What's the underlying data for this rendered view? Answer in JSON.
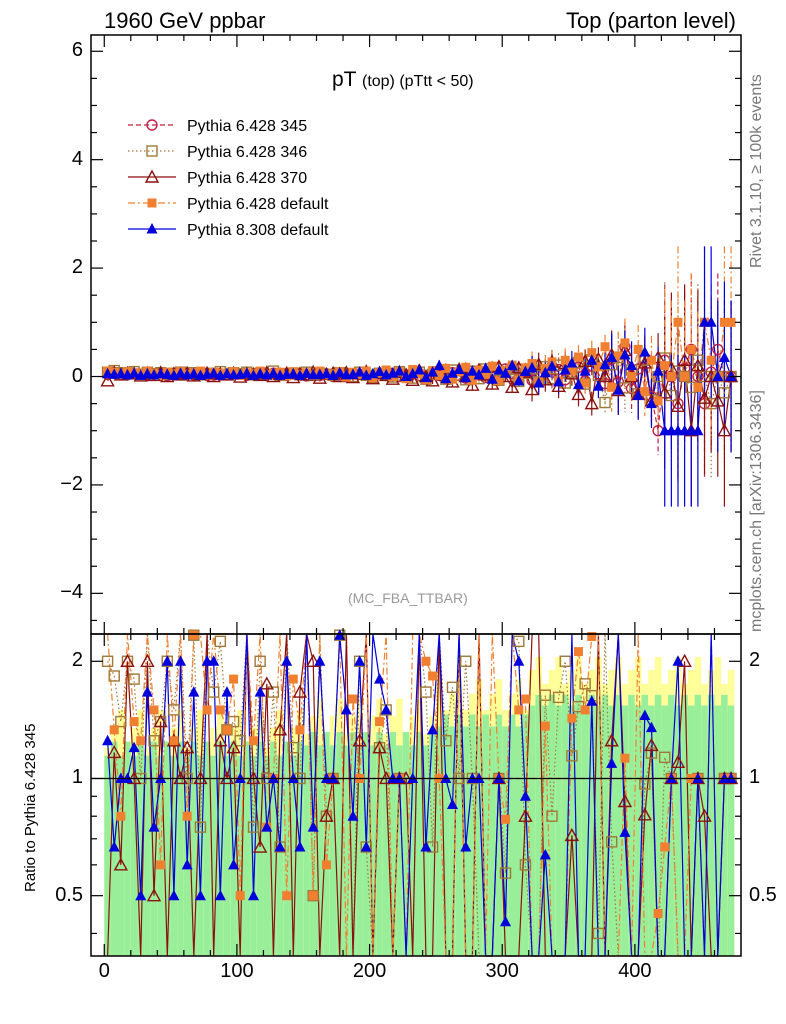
{
  "header": {
    "left": "1960 GeV ppbar",
    "right": "Top (parton level)"
  },
  "side_texts": {
    "rivet": "Rivet 3.1.10, ≥ 100k events",
    "mcplots": "mcplots.cern.ch [arXiv:1306.3436]"
  },
  "analysis_tag": "(MC_FBA_TTBAR)",
  "colors": {
    "p345": "#c02040",
    "p346": "#a07838",
    "p370": "#8b1010",
    "p6def": "#f08030",
    "p8def": "#0000dd",
    "band_inner": "#99ee99",
    "band_outer": "#ffff99"
  },
  "chart_data": [
    {
      "type": "scatter",
      "title_main": "pT",
      "title_sub": "(top) (pTtt < 50)",
      "xlim": [
        -10,
        480
      ],
      "ylim": [
        -4.75,
        6.3
      ],
      "yticks": [
        -4,
        -2,
        0,
        2,
        4,
        6
      ],
      "ytick_labels": [
        "−4",
        "−2",
        "0",
        "2",
        "4",
        "6"
      ],
      "legend_position": "top-left",
      "series": [
        {
          "name": "Pythia 6.428 345",
          "marker": "open-circle",
          "line": "dashed"
        },
        {
          "name": "Pythia 6.428 346",
          "marker": "open-square",
          "line": "dotted"
        },
        {
          "name": "Pythia 6.428 370",
          "marker": "open-triangle",
          "line": "solid"
        },
        {
          "name": "Pythia 6.428 default",
          "marker": "filled-square",
          "line": "dashdot"
        },
        {
          "name": "Pythia 8.308 default",
          "marker": "filled-triangle",
          "line": "solid"
        }
      ],
      "x": [
        2.5,
        7.5,
        12.5,
        17.5,
        22.5,
        27.5,
        32.5,
        37.5,
        42.5,
        47.5,
        52.5,
        57.5,
        62.5,
        67.5,
        72.5,
        77.5,
        82.5,
        87.5,
        92.5,
        97.5,
        102.5,
        107.5,
        112.5,
        117.5,
        122.5,
        127.5,
        132.5,
        137.5,
        142.5,
        147.5,
        152.5,
        157.5,
        162.5,
        167.5,
        172.5,
        177.5,
        182.5,
        187.5,
        192.5,
        197.5,
        202.5,
        207.5,
        212.5,
        217.5,
        222.5,
        227.5,
        232.5,
        237.5,
        242.5,
        247.5,
        252.5,
        257.5,
        262.5,
        267.5,
        272.5,
        277.5,
        282.5,
        287.5,
        292.5,
        297.5,
        302.5,
        307.5,
        312.5,
        317.5,
        322.5,
        327.5,
        332.5,
        337.5,
        342.5,
        347.5,
        352.5,
        357.5,
        362.5,
        367.5,
        372.5,
        377.5,
        382.5,
        387.5,
        392.5,
        397.5,
        402.5,
        407.5,
        412.5,
        417.5,
        422.5,
        427.5,
        432.5,
        437.5,
        442.5,
        447.5,
        452.5,
        457.5,
        462.5,
        467.5,
        472.5
      ],
      "y_p345": [
        0.04,
        0.06,
        0.05,
        0.03,
        0.05,
        0.04,
        0.03,
        0.04,
        0.05,
        0.02,
        0.04,
        0.03,
        0.05,
        0.03,
        0.04,
        0.02,
        0.03,
        0.04,
        0.03,
        0.05,
        0.04,
        0.02,
        0.04,
        0.03,
        0.04,
        0.06,
        0.03,
        0.02,
        0.05,
        0.03,
        0.01,
        0.04,
        0.02,
        0.05,
        0.0,
        0.03,
        0.02,
        0.05,
        0.04,
        0.03,
        0.01,
        0.05,
        0.02,
        0.06,
        0.0,
        0.03,
        0.05,
        0.02,
        -0.03,
        0.06,
        0.02,
        -0.04,
        0.07,
        0.02,
        -0.03,
        0.1,
        0.03,
        -0.02,
        0.08,
        0.0,
        0.14,
        0.05,
        -0.04,
        0.1,
        -0.07,
        0.07,
        0.11,
        -0.05,
        0.13,
        -0.06,
        0.07,
        0.17,
        -0.08,
        0.19,
        0.05,
        -0.13,
        0.32,
        -0.1,
        0.55,
        -0.22,
        0.14,
        0.31,
        -0.37,
        -1.0,
        0.3,
        0.0,
        -0.5,
        0.15,
        0.5,
        0.0,
        -0.5,
        0.08,
        0.5,
        0.0,
        0.0
      ],
      "y_p346": [
        0.08,
        0.11,
        0.07,
        0.06,
        0.09,
        0.04,
        0.08,
        0.05,
        0.07,
        0.04,
        0.06,
        0.08,
        0.05,
        0.07,
        0.03,
        0.06,
        0.05,
        0.09,
        0.04,
        0.07,
        0.05,
        0.08,
        0.03,
        0.06,
        0.04,
        0.1,
        0.02,
        0.05,
        0.06,
        0.03,
        0.08,
        0.02,
        0.06,
        0.04,
        0.02,
        0.07,
        0.05,
        0.0,
        0.08,
        0.02,
        -0.02,
        0.06,
        0.03,
        -0.01,
        0.09,
        0.0,
        -0.03,
        0.08,
        -0.05,
        0.04,
        0.09,
        -0.05,
        0.12,
        0.02,
        -0.06,
        0.1,
        -0.04,
        0.14,
        0.01,
        -0.07,
        0.08,
        0.13,
        -0.09,
        0.06,
        0.14,
        -0.1,
        0.18,
        -0.04,
        0.21,
        -0.12,
        0.08,
        0.26,
        -0.14,
        0.31,
        0.02,
        -0.48,
        0.22,
        0.35,
        -0.21,
        0.12,
        -0.32,
        0.3,
        -0.43,
        0.0,
        0.34,
        -0.35,
        0.1,
        0.0,
        -0.2,
        0.3,
        0.0,
        -0.5,
        0.0,
        -0.3,
        0.0
      ],
      "y_p370": [
        -0.08,
        0.07,
        0.03,
        0.06,
        0.05,
        0.01,
        0.06,
        0.02,
        0.07,
        0.0,
        0.05,
        0.03,
        0.06,
        0.01,
        0.04,
        0.06,
        0.0,
        0.05,
        0.03,
        0.06,
        -0.01,
        0.05,
        0.04,
        0.02,
        0.07,
        0.0,
        0.04,
        0.06,
        -0.02,
        0.05,
        0.03,
        0.08,
        -0.03,
        0.04,
        0.06,
        0.0,
        0.07,
        -0.02,
        0.05,
        0.09,
        -0.04,
        0.06,
        0.02,
        -0.05,
        0.08,
        0.03,
        -0.07,
        0.11,
        0.0,
        -0.08,
        0.14,
        0.02,
        -0.1,
        0.13,
        0.0,
        -0.16,
        0.12,
        0.03,
        -0.14,
        0.18,
        0.0,
        -0.2,
        0.16,
        0.08,
        -0.24,
        0.22,
        -0.06,
        0.27,
        -0.18,
        0.24,
        0.05,
        -0.33,
        0.28,
        -0.5,
        0.32,
        0.0,
        0.4,
        -0.26,
        0.48,
        0.0,
        -0.33,
        0.25,
        -0.45,
        0.35,
        -0.3,
        0.15,
        -0.55,
        0.3,
        -1.0,
        0.2,
        -0.4,
        0.0,
        -0.45,
        -1.0,
        0.0
      ],
      "y_p6def": [
        0.1,
        0.08,
        0.04,
        0.09,
        0.07,
        0.05,
        0.1,
        0.06,
        0.03,
        0.08,
        0.05,
        0.09,
        0.04,
        0.07,
        0.1,
        0.03,
        0.08,
        0.06,
        0.04,
        0.09,
        0.02,
        0.07,
        0.05,
        0.1,
        0.03,
        0.06,
        0.08,
        0.01,
        0.09,
        0.04,
        0.07,
        0.02,
        0.1,
        0.03,
        0.05,
        0.09,
        -0.01,
        0.08,
        0.04,
        0.1,
        -0.02,
        0.07,
        0.12,
        0.0,
        0.09,
        -0.04,
        0.13,
        0.05,
        -0.06,
        0.11,
        0.02,
        0.15,
        -0.05,
        0.09,
        0.17,
        -0.07,
        0.12,
        0.04,
        0.19,
        -0.08,
        0.11,
        0.21,
        -0.06,
        0.16,
        0.24,
        -0.1,
        0.15,
        0.27,
        -0.08,
        0.3,
        0.1,
        0.36,
        -0.12,
        0.44,
        0.18,
        0.55,
        -0.2,
        0.38,
        0.62,
        0.0,
        0.5,
        -0.28,
        0.3,
        -0.45,
        0.2,
        0.0,
        1.0,
        0.0,
        0.5,
        -0.2,
        1.0,
        0.3,
        0.0,
        1.0,
        1.0
      ],
      "y_p8def": [
        0.05,
        0.04,
        0.05,
        0.03,
        0.06,
        0.02,
        0.05,
        0.03,
        0.05,
        0.04,
        0.02,
        0.06,
        0.03,
        0.05,
        0.02,
        0.04,
        0.06,
        0.02,
        0.05,
        0.03,
        0.04,
        0.06,
        0.02,
        0.05,
        0.03,
        0.06,
        0.02,
        0.04,
        0.05,
        0.02,
        0.06,
        0.03,
        0.04,
        0.05,
        0.02,
        0.07,
        0.03,
        0.04,
        0.08,
        0.02,
        0.05,
        0.09,
        0.03,
        0.06,
        0.1,
        0.0,
        0.05,
        0.12,
        -0.02,
        0.08,
        0.2,
        -0.04,
        0.06,
        0.13,
        -0.02,
        0.1,
        0.03,
        0.15,
        -0.05,
        0.12,
        0.06,
        0.2,
        -0.08,
        0.09,
        0.16,
        -0.12,
        0.07,
        0.19,
        -0.1,
        0.12,
        0.25,
        -0.15,
        0.1,
        0.3,
        -0.18,
        0.22,
        0.35,
        -0.25,
        0.4,
        0.2,
        -0.35,
        0.45,
        -0.5,
        0.1,
        -1.0,
        -1.0,
        -1.0,
        -1.0,
        -1.0,
        -1.0,
        1.0,
        1.0,
        0.0,
        0.35,
        0.0
      ]
    },
    {
      "type": "scatter",
      "ylabel": "Ratio to Pythia 6.428 345",
      "ylim": [
        0.35,
        2.35
      ],
      "yticks": [
        0.5,
        1,
        2
      ],
      "ytick_labels": [
        "0.5",
        "1",
        "2"
      ],
      "xlim": [
        -10,
        480
      ],
      "xticks": [
        0,
        100,
        200,
        300,
        400
      ],
      "xtick_labels": [
        "0",
        "100",
        "200",
        "300",
        "400"
      ],
      "reference_line": 1,
      "uncertainty_bands": "inner green, outer yellow around 1"
    }
  ]
}
